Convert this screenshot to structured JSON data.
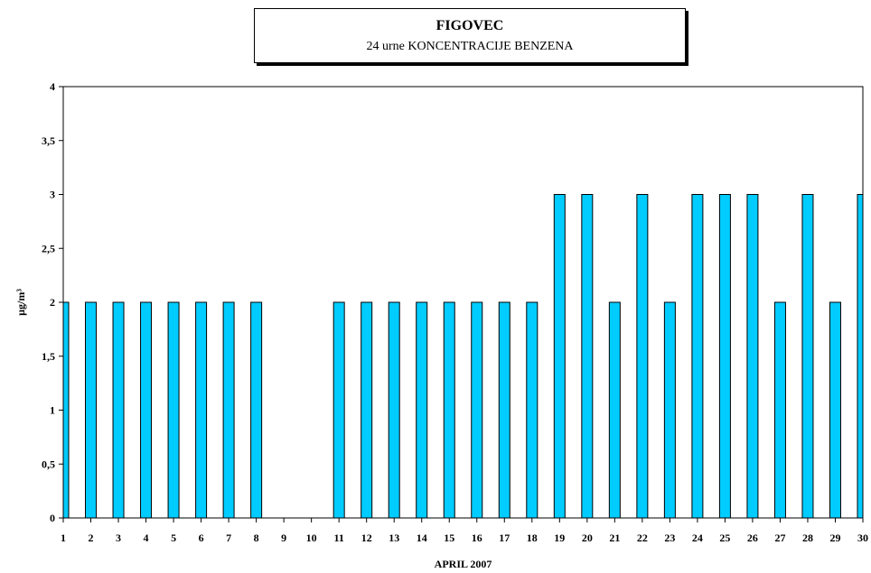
{
  "chart_data": {
    "type": "bar",
    "title": "FIGOVEC",
    "subtitle": "24 urne KONCENTRACIJE BENZENA",
    "xlabel": "APRIL 2007",
    "ylabel": "µg/m³",
    "categories": [
      "1",
      "2",
      "3",
      "4",
      "5",
      "6",
      "7",
      "8",
      "9",
      "10",
      "11",
      "12",
      "13",
      "14",
      "15",
      "16",
      "17",
      "18",
      "19",
      "20",
      "21",
      "22",
      "23",
      "24",
      "25",
      "26",
      "27",
      "28",
      "29",
      "30"
    ],
    "values": [
      2,
      2,
      2,
      2,
      2,
      2,
      2,
      2,
      null,
      null,
      2,
      2,
      2,
      2,
      2,
      2,
      2,
      2,
      3,
      3,
      2,
      3,
      2,
      3,
      3,
      3,
      2,
      3,
      2,
      3
    ],
    "ylim": [
      0,
      4
    ],
    "yticks": [
      0,
      0.5,
      1,
      1.5,
      2,
      2.5,
      3,
      3.5,
      4
    ],
    "ytick_labels": [
      "0",
      "0,5",
      "1",
      "1,5",
      "2",
      "2,5",
      "3",
      "3,5",
      "4"
    ],
    "bar_color": "#00ccff",
    "grid": false
  }
}
